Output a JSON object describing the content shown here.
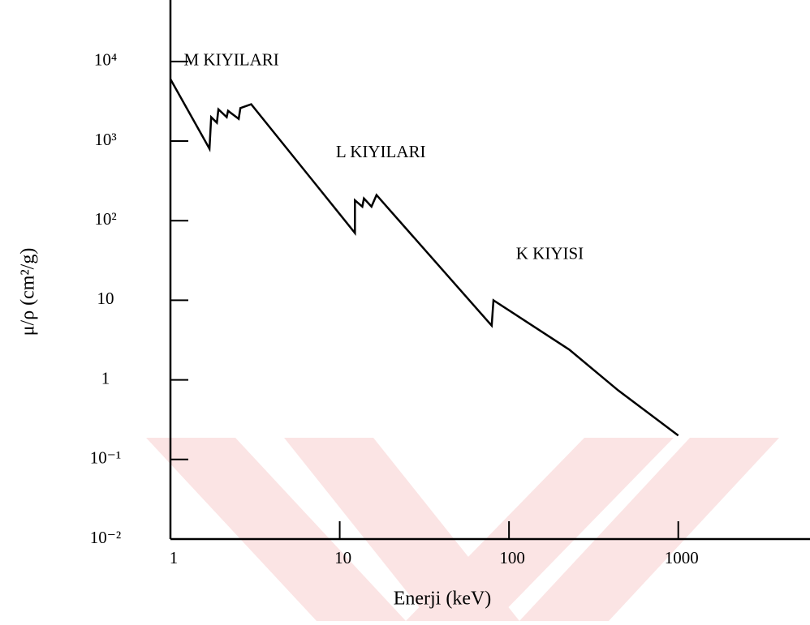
{
  "chart_data": {
    "type": "line",
    "x_label": "Enerji (keV)",
    "y_label": "μ/ρ (cm²/g)",
    "x": [
      1,
      1.7,
      1.74,
      1.88,
      1.92,
      2.15,
      2.19,
      2.53,
      2.59,
      3,
      12.3,
      12.3,
      13.6,
      13.9,
      15.4,
      16.5,
      79,
      81,
      227,
      441,
      1000
    ],
    "values": [
      6000,
      800,
      2000,
      1700,
      2500,
      2000,
      2400,
      1900,
      2600,
      2900,
      70,
      180,
      150,
      190,
      150,
      210,
      4.8,
      10,
      2.4,
      0.74,
      0.2
    ],
    "color": "#000000",
    "xscale": "log",
    "yscale": "log",
    "xlim": [
      1,
      6000
    ],
    "ylim": [
      0.01,
      60000
    ],
    "xticks": [
      1,
      10,
      100,
      1000
    ],
    "yticks": [
      {
        "value": 10000,
        "label": "10⁴"
      },
      {
        "value": 1000,
        "label": "10³"
      },
      {
        "value": 100,
        "label": "10²"
      },
      10,
      1,
      {
        "value": 0.1,
        "label": "10⁻¹"
      },
      {
        "value": 0.01,
        "label": "10⁻²"
      }
    ],
    "annotations": [
      {
        "text": "M KIYILARI",
        "x": 1.2,
        "y": 10000
      },
      {
        "text": "L KIYILARI",
        "x": 9.5,
        "y": 700
      },
      {
        "text": "K KIYISI",
        "x": 110,
        "y": 37
      }
    ]
  }
}
